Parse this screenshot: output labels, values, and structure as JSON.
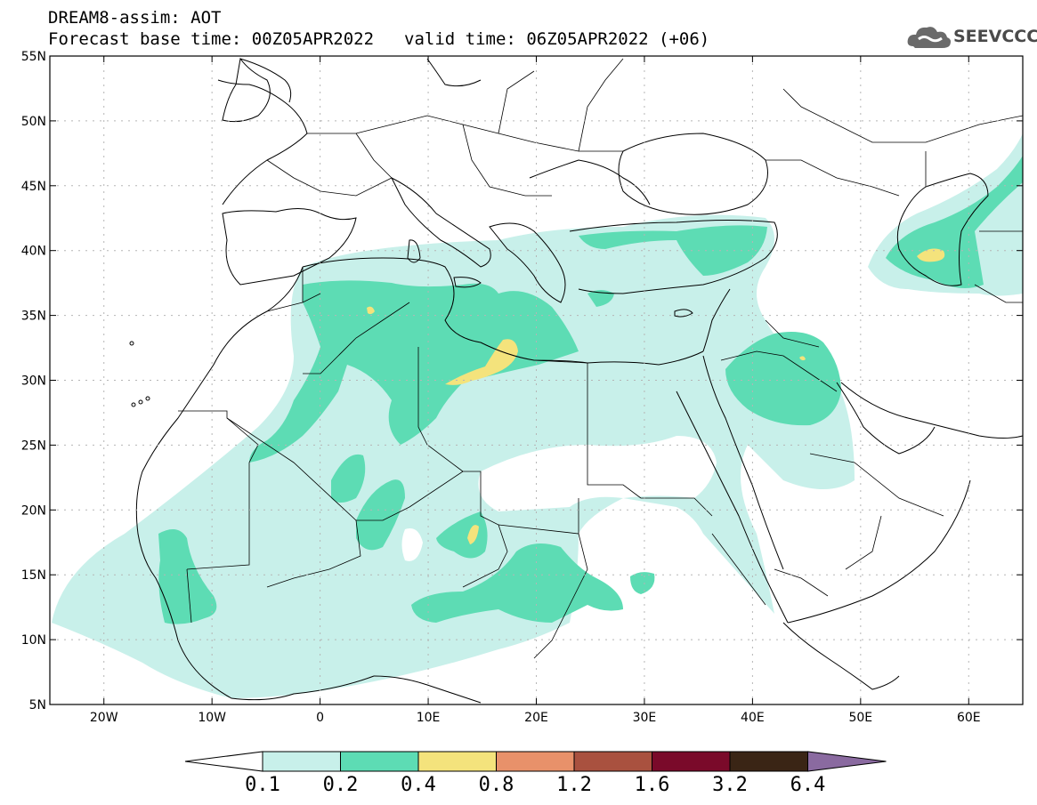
{
  "header": {
    "title_line1": "DREAM8-assim: AOT",
    "forecast_base": "Forecast base time: 00Z05APR2022",
    "valid_time": "valid time: 06Z05APR2022 (+06)"
  },
  "logo": {
    "text": "SEEVCCC",
    "icon": "cloud-icon"
  },
  "map": {
    "lat_labels": [
      "55N",
      "50N",
      "45N",
      "40N",
      "35N",
      "30N",
      "25N",
      "20N",
      "15N",
      "10N",
      "5N"
    ],
    "lon_labels": [
      "20W",
      "10W",
      "0",
      "10E",
      "20E",
      "30E",
      "40E",
      "50E",
      "60E"
    ],
    "lon_range": [
      -25,
      65
    ],
    "lat_range": [
      5,
      55
    ],
    "variable": "AOT"
  },
  "colorbar": {
    "levels": [
      "0.1",
      "0.2",
      "0.4",
      "0.8",
      "1.2",
      "1.6",
      "3.2",
      "6.4"
    ],
    "colors": [
      "#c8f0ea",
      "#5ddcb4",
      "#f4e37c",
      "#e8916a",
      "#a9513f",
      "#7a0a2a",
      "#3a2515",
      "#8a6aa0"
    ],
    "under_color": "#ffffff",
    "over_color": "#8a6aa0"
  }
}
